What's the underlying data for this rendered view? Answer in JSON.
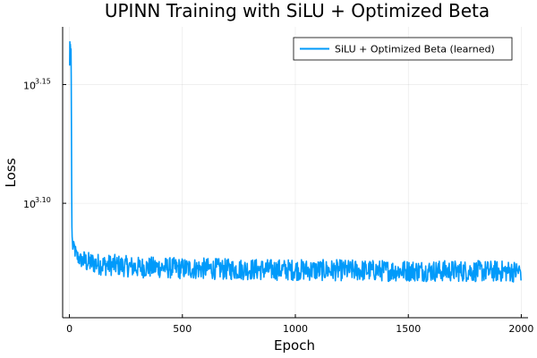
{
  "chart_data": {
    "type": "line",
    "title": "UPINN Training with SiLU + Optimized Beta",
    "xlabel": "Epoch",
    "ylabel": "Loss",
    "xlim": [
      -30,
      2030
    ],
    "ylim_log10": [
      3.0518,
      3.1743
    ],
    "yscale": "log10",
    "grid": true,
    "legend_position": "top-right",
    "x_ticks": [
      {
        "value": 0,
        "label": "0"
      },
      {
        "value": 500,
        "label": "500"
      },
      {
        "value": 1000,
        "label": "1000"
      },
      {
        "value": 1500,
        "label": "1500"
      },
      {
        "value": 2000,
        "label": "2000"
      }
    ],
    "y_ticks": [
      {
        "exponent": 3.1,
        "base": "10",
        "sup": "3.10"
      },
      {
        "exponent": 3.15,
        "base": "10",
        "sup": "3.15"
      }
    ],
    "series": [
      {
        "name": "SiLU + Optimized Beta (learned)",
        "color": "#009AFA",
        "points": [
          [
            1,
            3.158
          ],
          [
            2,
            3.168
          ],
          [
            3,
            3.16
          ],
          [
            4,
            3.167
          ],
          [
            5,
            3.165
          ],
          [
            6,
            3.161
          ],
          [
            7,
            3.165
          ],
          [
            8,
            3.152
          ],
          [
            9,
            3.13
          ],
          [
            10,
            3.105
          ],
          [
            11,
            3.09
          ],
          [
            12,
            3.086
          ],
          [
            14,
            3.081
          ],
          [
            16,
            3.083
          ],
          [
            18,
            3.079
          ],
          [
            20,
            3.082
          ],
          [
            25,
            3.08
          ],
          [
            30,
            3.078
          ],
          [
            40,
            3.077
          ],
          [
            50,
            3.076
          ],
          [
            60,
            3.076
          ],
          [
            80,
            3.075
          ],
          [
            100,
            3.075
          ],
          [
            150,
            3.074
          ],
          [
            200,
            3.074
          ],
          [
            300,
            3.073
          ],
          [
            400,
            3.073
          ],
          [
            500,
            3.0725
          ],
          [
            600,
            3.0725
          ],
          [
            700,
            3.0722
          ],
          [
            800,
            3.0722
          ],
          [
            900,
            3.072
          ],
          [
            1000,
            3.072
          ],
          [
            1100,
            3.0718
          ],
          [
            1200,
            3.0718
          ],
          [
            1300,
            3.0717
          ],
          [
            1400,
            3.0716
          ],
          [
            1500,
            3.0716
          ],
          [
            1600,
            3.0715
          ],
          [
            1700,
            3.0715
          ],
          [
            1800,
            3.0714
          ],
          [
            1900,
            3.0714
          ],
          [
            2000,
            3.0713
          ]
        ],
        "noise_amplitude": 0.0045
      }
    ]
  }
}
